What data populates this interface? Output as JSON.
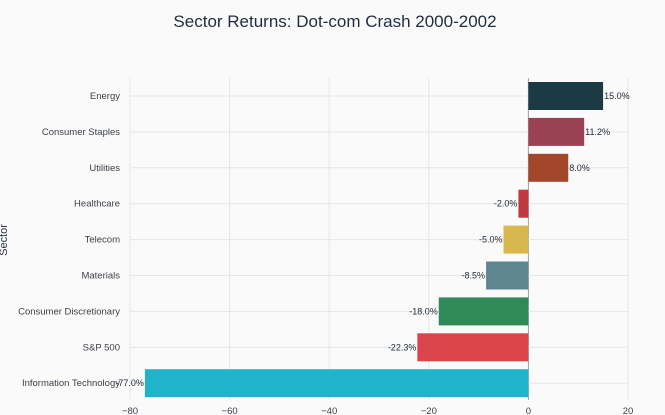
{
  "chart_data": {
    "type": "bar",
    "orientation": "horizontal",
    "title": "Sector Returns: Dot-com Crash 2000-2002",
    "ylabel": "Sector",
    "xlabel": "",
    "xlim": [
      -80,
      20
    ],
    "xticks": [
      -80,
      -60,
      -40,
      -20,
      0,
      20
    ],
    "grid": true,
    "categories": [
      "Energy",
      "Consumer Staples",
      "Utilities",
      "Healthcare",
      "Telecom",
      "Materials",
      "Consumer Discretionary",
      "S&P 500",
      "Information Technology"
    ],
    "values": [
      15.0,
      11.2,
      8.0,
      -2.0,
      -5.0,
      -8.5,
      -18.0,
      -22.3,
      -77.0
    ],
    "labels": [
      "15.0%",
      "11.2%",
      "8.0%",
      "-2.0%",
      "-5.0%",
      "-8.5%",
      "-18.0%",
      "-22.3%",
      "-77.0%"
    ],
    "colors": [
      "#1b3a44",
      "#9b4154",
      "#a3472b",
      "#c0393f",
      "#d8b84c",
      "#5d8690",
      "#2f8a57",
      "#d9454a",
      "#1fb3cc"
    ]
  }
}
